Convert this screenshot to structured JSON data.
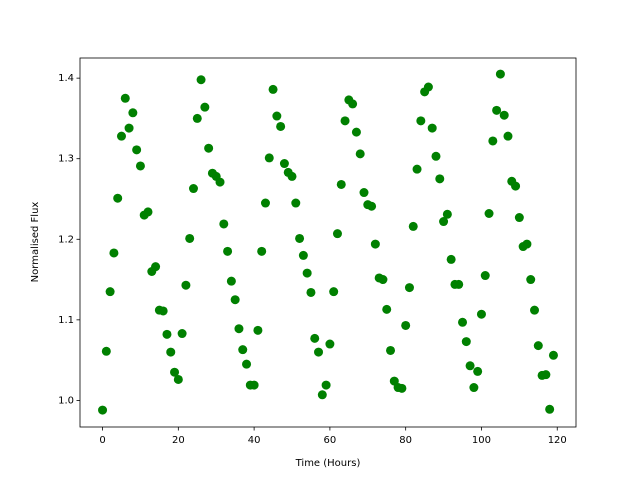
{
  "chart_data": {
    "type": "scatter",
    "xlabel": "Time (Hours)",
    "ylabel": "Normalised Flux",
    "color": "#008000",
    "grid": false,
    "x": [
      0,
      1,
      2,
      3,
      4,
      5,
      6,
      7,
      8,
      9,
      10,
      11,
      12,
      13,
      14,
      15,
      16,
      17,
      18,
      19,
      20,
      21,
      22,
      23,
      24,
      25,
      26,
      27,
      28,
      29,
      30,
      31,
      32,
      33,
      34,
      35,
      36,
      37,
      38,
      39,
      40,
      41,
      42,
      43,
      44,
      45,
      46,
      47,
      48,
      49,
      50,
      51,
      52,
      53,
      54,
      55,
      56,
      57,
      58,
      59,
      60,
      61,
      62,
      63,
      64,
      65,
      66,
      67,
      68,
      69,
      70,
      71,
      72,
      73,
      74,
      75,
      76,
      77,
      78,
      79,
      80,
      81,
      82,
      83,
      84,
      85,
      86,
      87,
      88,
      89,
      90,
      91,
      92,
      93,
      94,
      95,
      96,
      97,
      98,
      99,
      100,
      101,
      102,
      103,
      104,
      105,
      106,
      107,
      108,
      109,
      110,
      111,
      112,
      113,
      114,
      115,
      116,
      117,
      118,
      119
    ],
    "values": [
      0.988,
      1.061,
      1.135,
      1.183,
      1.251,
      1.328,
      1.375,
      1.338,
      1.357,
      1.311,
      1.291,
      1.23,
      1.234,
      1.16,
      1.166,
      1.112,
      1.111,
      1.082,
      1.06,
      1.035,
      1.026,
      1.083,
      1.143,
      1.201,
      1.263,
      1.35,
      1.398,
      1.364,
      1.313,
      1.282,
      1.278,
      1.271,
      1.219,
      1.185,
      1.148,
      1.125,
      1.089,
      1.063,
      1.045,
      1.019,
      1.019,
      1.087,
      1.185,
      1.245,
      1.301,
      1.386,
      1.353,
      1.34,
      1.294,
      1.283,
      1.278,
      1.245,
      1.201,
      1.18,
      1.158,
      1.134,
      1.077,
      1.06,
      1.007,
      1.019,
      1.07,
      1.135,
      1.207,
      1.268,
      1.347,
      1.373,
      1.368,
      1.333,
      1.306,
      1.258,
      1.243,
      1.241,
      1.194,
      1.152,
      1.15,
      1.113,
      1.062,
      1.024,
      1.016,
      1.015,
      1.093,
      1.14,
      1.216,
      1.287,
      1.347,
      1.383,
      1.389,
      1.338,
      1.303,
      1.275,
      1.222,
      1.231,
      1.175,
      1.144,
      1.144,
      1.097,
      1.073,
      1.043,
      1.016,
      1.036,
      1.107,
      1.155,
      1.232,
      1.322,
      1.36,
      1.405,
      1.354,
      1.328,
      1.272,
      1.266,
      1.227,
      1.191,
      1.194,
      1.15,
      1.112,
      1.068,
      1.031,
      1.032,
      0.989,
      1.056
    ],
    "xlim": [
      -5.95,
      124.95
    ],
    "xticks": [
      0,
      20,
      40,
      60,
      80,
      100,
      120
    ],
    "ylim": [
      0.967,
      1.425
    ],
    "yticks": [
      {
        "value": 1.0,
        "label": "1.0"
      },
      {
        "value": 1.1,
        "label": "1.1"
      },
      {
        "value": 1.2,
        "label": "1.2"
      },
      {
        "value": 1.3,
        "label": "1.3"
      },
      {
        "value": 1.4,
        "label": "1.4"
      }
    ]
  }
}
